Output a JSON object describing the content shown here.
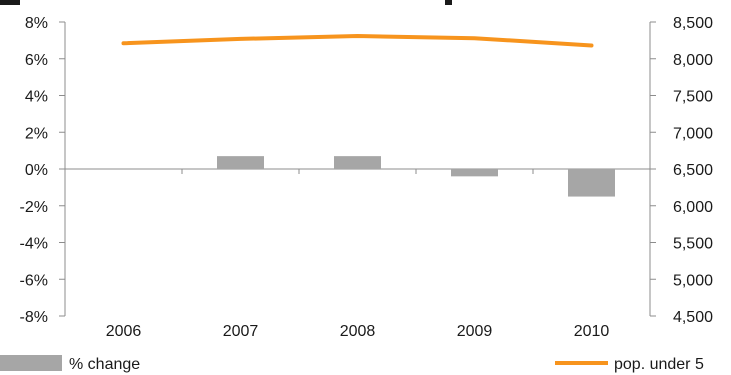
{
  "chart_data": {
    "type": "bar",
    "categories": [
      "2006",
      "2007",
      "2008",
      "2009",
      "2010"
    ],
    "series": [
      {
        "name": "% change",
        "type": "bar",
        "axis": "left",
        "values": [
          0.0,
          0.7,
          0.7,
          -0.4,
          -1.5
        ],
        "color": "#a6a6a6"
      },
      {
        "name": "pop. under 5",
        "type": "line",
        "axis": "right",
        "values": [
          8210,
          8270,
          8310,
          8280,
          8180
        ],
        "color": "#f7941d"
      }
    ],
    "y_left": {
      "ticks": [
        "8%",
        "6%",
        "4%",
        "2%",
        "0%",
        "-2%",
        "-4%",
        "-6%",
        "-8%"
      ],
      "min": -8,
      "max": 8,
      "step": 2
    },
    "y_right": {
      "ticks": [
        "8,500",
        "8,000",
        "7,500",
        "7,000",
        "6,500",
        "6,000",
        "5,500",
        "5,000",
        "4,500"
      ],
      "min": 4500,
      "max": 8500,
      "step": 500
    },
    "grid": false,
    "legend_placement": "bottom"
  },
  "legend": {
    "bar_label": "% change",
    "line_label": "pop. under 5"
  }
}
